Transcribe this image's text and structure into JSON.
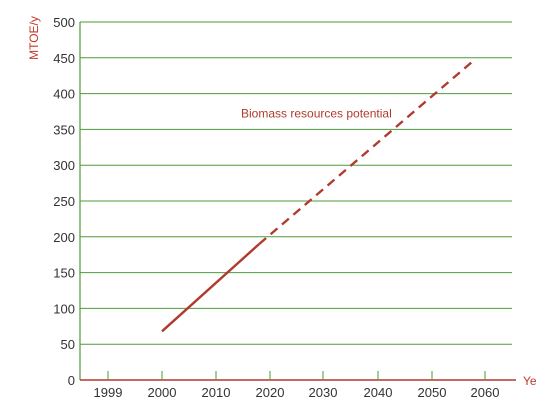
{
  "chart_data": {
    "type": "line",
    "ylabel": "MTOE/y",
    "xlabel": "Ye",
    "x_categories": [
      "1999",
      "2000",
      "2010",
      "2020",
      "2030",
      "2040",
      "2050",
      "2060"
    ],
    "ylim": [
      0,
      500
    ],
    "yticks": [
      0,
      50,
      100,
      150,
      200,
      250,
      300,
      350,
      400,
      450,
      500
    ],
    "grid": "horizontal",
    "series": [
      {
        "style": "solid",
        "points": [
          {
            "x": "2000",
            "y": 68
          },
          {
            "x": 2018,
            "y": 190
          }
        ]
      },
      {
        "style": "dashed",
        "points": [
          {
            "x": 2018,
            "y": 190
          },
          {
            "x": 2058,
            "y": 447
          }
        ]
      }
    ],
    "annotation": {
      "text": "Biomass resources potential",
      "x": 2017,
      "y": 372
    },
    "colors": {
      "series": "#b03a2e",
      "grid": "#4f9a3a",
      "axis_title": "#c0392b"
    }
  }
}
